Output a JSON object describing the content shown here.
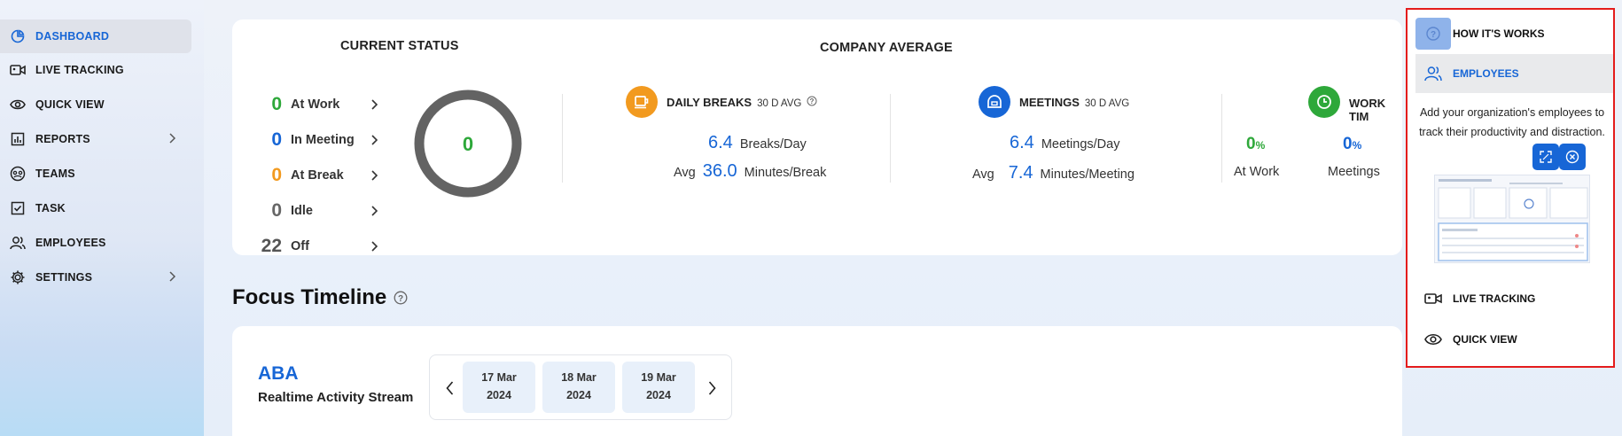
{
  "sidebar": {
    "items": [
      {
        "label": "DASHBOARD",
        "icon": "pie-chart-icon",
        "active": true
      },
      {
        "label": "LIVE TRACKING",
        "icon": "video-icon"
      },
      {
        "label": "QUICK VIEW",
        "icon": "eye-icon"
      },
      {
        "label": "REPORTS",
        "icon": "bar-chart-icon",
        "expandable": true
      },
      {
        "label": "TEAMS",
        "icon": "teams-icon"
      },
      {
        "label": "TASK",
        "icon": "checkbox-icon"
      },
      {
        "label": "EMPLOYEES",
        "icon": "users-icon"
      },
      {
        "label": "SETTINGS",
        "icon": "gear-icon",
        "expandable": true
      }
    ]
  },
  "current_status": {
    "title": "CURRENT STATUS",
    "rows": [
      {
        "count": "0",
        "label": "At Work",
        "color": "#2ea83a"
      },
      {
        "count": "0",
        "label": "In Meeting",
        "color": "#1766d6"
      },
      {
        "count": "0",
        "label": "At Break",
        "color": "#f29a1f"
      },
      {
        "count": "0",
        "label": "Idle",
        "color": "#666666"
      },
      {
        "count": "22",
        "label": "Off",
        "color": "#555555"
      }
    ],
    "donut_value": "0"
  },
  "company_average": {
    "title": "COMPANY AVERAGE",
    "daily_breaks": {
      "title": "DAILY BREAKS",
      "period": "30 D AVG",
      "per_day_value": "6.4",
      "per_day_unit": "Breaks/Day",
      "avg_label": "Avg",
      "avg_value": "36.0",
      "avg_unit": "Minutes/Break"
    },
    "meetings": {
      "title": "MEETINGS",
      "period": "30 D AVG",
      "per_day_value": "6.4",
      "per_day_unit": "Meetings/Day",
      "avg_label": "Avg",
      "avg_value": "7.4",
      "avg_unit": "Minutes/Meeting"
    },
    "work_time": {
      "title": "WORK TIM",
      "at_work_value": "0",
      "at_work_unit": "%",
      "at_work_label": "At Work",
      "meetings_value": "0",
      "meetings_unit": "%",
      "meetings_label": "Meetings"
    }
  },
  "focus_timeline": {
    "title": "Focus Timeline",
    "team": "ABA",
    "subtitle": "Realtime Activity Stream",
    "dates": [
      {
        "day": "17 Mar",
        "year": "2024"
      },
      {
        "day": "18 Mar",
        "year": "2024"
      },
      {
        "day": "19 Mar",
        "year": "2024"
      }
    ]
  },
  "help_panel": {
    "how_it_works": "HOW IT'S WORKS",
    "employees": "EMPLOYEES",
    "description": "Add your organization's employees to track their productivity and distraction.",
    "live_tracking": "LIVE TRACKING",
    "quick_view": "QUICK VIEW"
  },
  "colors": {
    "accent": "#1766d6",
    "green": "#2ea83a",
    "orange": "#f29a1f",
    "highlight_border": "#e41c1c"
  }
}
